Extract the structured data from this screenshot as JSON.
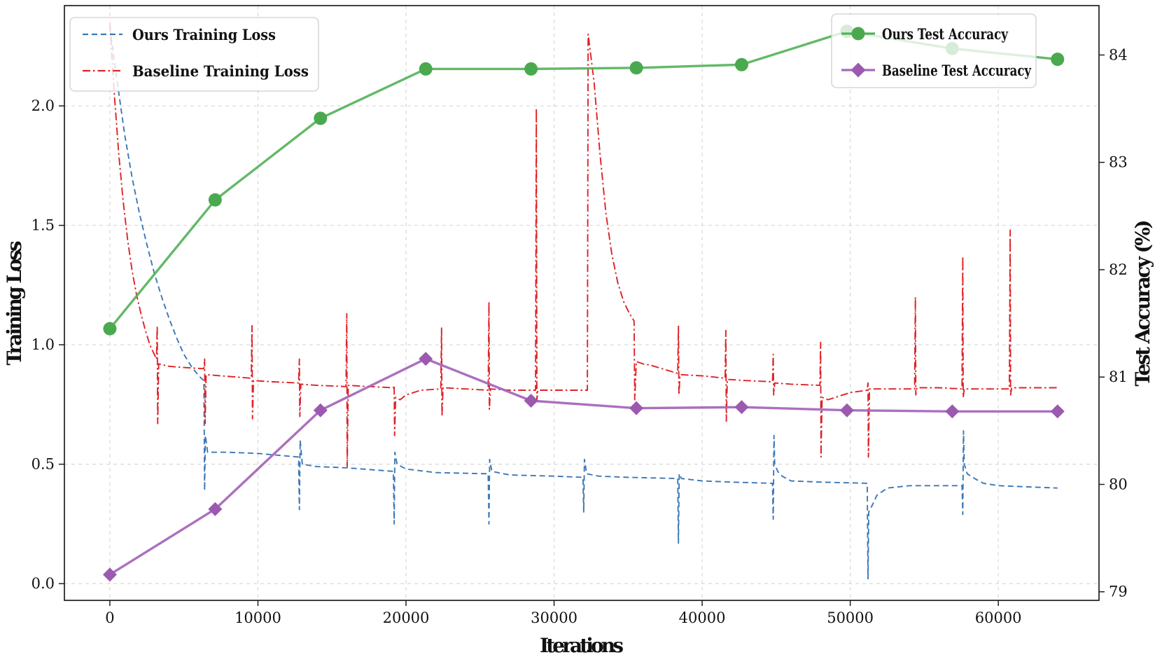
{
  "figure": {
    "background": "#ffffff",
    "axes": {
      "x": {
        "label": "Iterations",
        "ticks": [
          0,
          10000,
          20000,
          30000,
          40000,
          50000,
          60000
        ],
        "tick_labels": [
          "0",
          "10000",
          "20000",
          "30000",
          "40000",
          "50000",
          "60000"
        ],
        "lim": [
          -3070,
          66800
        ]
      },
      "y_left": {
        "label": "Training Loss",
        "ticks": [
          0.0,
          0.5,
          1.0,
          1.5,
          2.0
        ],
        "tick_labels": [
          "0.0",
          "0.5",
          "1.0",
          "1.5",
          "2.0"
        ],
        "lim": [
          -0.07,
          2.42
        ]
      },
      "y_right": {
        "label": "Test Accuracy (%)",
        "ticks": [
          79,
          80,
          81,
          82,
          83,
          84
        ],
        "tick_labels": [
          "79",
          "80",
          "81",
          "82",
          "83",
          "84"
        ],
        "lim": [
          78.92,
          84.46
        ]
      },
      "grid": "dashed, on x ticks and left y ticks"
    }
  },
  "colors": {
    "ours_loss_blue": "#3c78b5",
    "baseline_loss_red": "#e02126",
    "ours_acc_green_line": "#52b158",
    "ours_acc_green_marker": "#4aa94f",
    "baseline_acc_purple_line": "#a768ba",
    "baseline_acc_purple_marker": "#9c59b0",
    "grid": "#d8d8d8",
    "spine": "#1f1f1f",
    "legend_border": "#cfcfcf"
  },
  "legends": {
    "training_loss": {
      "position": "upper-left",
      "items": [
        {
          "label": "Ours Training Loss",
          "style": "dashed",
          "color": "#3c78b5"
        },
        {
          "label": "Baseline Training Loss",
          "style": "dash-dot",
          "color": "#e02126"
        }
      ]
    },
    "test_accuracy": {
      "position": "upper-right",
      "items": [
        {
          "label": "Ours Test Accuracy",
          "style": "solid + circle marker",
          "color": "#4aa94f"
        },
        {
          "label": "Baseline Test Accuracy",
          "style": "solid + diamond marker",
          "color": "#9c59b0"
        }
      ]
    }
  },
  "chart_data": {
    "type": "line",
    "title": "",
    "xlabel": "Iterations",
    "ylabel_left": "Training Loss",
    "ylabel_right": "Test Accuracy (%)",
    "xlim": [
      -3070,
      66800
    ],
    "ylim_left": [
      -0.07,
      2.42
    ],
    "ylim_right": [
      78.92,
      84.46
    ],
    "accuracy_iterations": [
      0,
      7111,
      14222,
      21333,
      28444,
      35556,
      42667,
      49778,
      56889,
      64000
    ],
    "series": [
      {
        "name": "Ours Test Accuracy",
        "axis": "right",
        "marker": "circle",
        "values": [
          81.45,
          82.65,
          83.41,
          83.87,
          83.87,
          83.88,
          83.91,
          84.22,
          84.06,
          83.96
        ]
      },
      {
        "name": "Baseline Test Accuracy",
        "axis": "right",
        "marker": "diamond",
        "values": [
          79.16,
          79.77,
          80.69,
          81.17,
          80.78,
          80.71,
          80.72,
          80.69,
          80.68,
          80.68
        ]
      },
      {
        "name": "Ours Training Loss",
        "axis": "left",
        "style": "dashed",
        "points": [
          [
            0,
            2.33
          ],
          [
            500,
            2.1
          ],
          [
            1000,
            1.88
          ],
          [
            1500,
            1.7
          ],
          [
            2000,
            1.55
          ],
          [
            2500,
            1.42
          ],
          [
            3000,
            1.3
          ],
          [
            3500,
            1.2
          ],
          [
            4000,
            1.11
          ],
          [
            4500,
            1.03
          ],
          [
            5000,
            0.96
          ],
          [
            5500,
            0.91
          ],
          [
            6000,
            0.87
          ],
          [
            6350,
            0.85
          ],
          [
            6400,
            0.39
          ],
          [
            6450,
            0.62
          ],
          [
            6600,
            0.55
          ],
          [
            8000,
            0.55
          ],
          [
            10000,
            0.545
          ],
          [
            12750,
            0.53
          ],
          [
            12800,
            0.31
          ],
          [
            12850,
            0.6
          ],
          [
            13000,
            0.5
          ],
          [
            14000,
            0.49
          ],
          [
            16000,
            0.485
          ],
          [
            19150,
            0.47
          ],
          [
            19200,
            0.25
          ],
          [
            19250,
            0.55
          ],
          [
            19400,
            0.5
          ],
          [
            20000,
            0.48
          ],
          [
            22000,
            0.465
          ],
          [
            25550,
            0.46
          ],
          [
            25600,
            0.25
          ],
          [
            25650,
            0.52
          ],
          [
            25800,
            0.47
          ],
          [
            27000,
            0.455
          ],
          [
            30000,
            0.45
          ],
          [
            31950,
            0.445
          ],
          [
            32000,
            0.3
          ],
          [
            32050,
            0.52
          ],
          [
            32200,
            0.46
          ],
          [
            33000,
            0.45
          ],
          [
            35000,
            0.445
          ],
          [
            38350,
            0.44
          ],
          [
            38400,
            0.17
          ],
          [
            38450,
            0.46
          ],
          [
            38600,
            0.44
          ],
          [
            40000,
            0.43
          ],
          [
            42000,
            0.425
          ],
          [
            44750,
            0.42
          ],
          [
            44800,
            0.27
          ],
          [
            44850,
            0.62
          ],
          [
            44900,
            0.5
          ],
          [
            45100,
            0.47
          ],
          [
            45400,
            0.45
          ],
          [
            46000,
            0.43
          ],
          [
            48000,
            0.425
          ],
          [
            51150,
            0.42
          ],
          [
            51200,
            0.02
          ],
          [
            51250,
            0.3
          ],
          [
            51500,
            0.33
          ],
          [
            51800,
            0.37
          ],
          [
            52500,
            0.4
          ],
          [
            54000,
            0.41
          ],
          [
            57550,
            0.41
          ],
          [
            57600,
            0.29
          ],
          [
            57650,
            0.64
          ],
          [
            57700,
            0.5
          ],
          [
            57900,
            0.46
          ],
          [
            58400,
            0.44
          ],
          [
            59000,
            0.42
          ],
          [
            60000,
            0.41
          ],
          [
            62000,
            0.405
          ],
          [
            64000,
            0.4
          ]
        ]
      },
      {
        "name": "Baseline Training Loss",
        "axis": "left",
        "style": "dash-dot",
        "points": [
          [
            0,
            2.35
          ],
          [
            300,
            2.05
          ],
          [
            600,
            1.8
          ],
          [
            900,
            1.6
          ],
          [
            1200,
            1.44
          ],
          [
            1500,
            1.31
          ],
          [
            1800,
            1.21
          ],
          [
            2100,
            1.13
          ],
          [
            2400,
            1.06
          ],
          [
            2700,
            1.0
          ],
          [
            3000,
            0.96
          ],
          [
            3150,
            0.94
          ],
          [
            3200,
            1.08
          ],
          [
            3230,
            0.67
          ],
          [
            3300,
            0.92
          ],
          [
            4000,
            0.91
          ],
          [
            5000,
            0.905
          ],
          [
            6350,
            0.9
          ],
          [
            6400,
            0.94
          ],
          [
            6430,
            0.67
          ],
          [
            6500,
            0.875
          ],
          [
            7500,
            0.87
          ],
          [
            9550,
            0.86
          ],
          [
            9600,
            1.08
          ],
          [
            9630,
            0.69
          ],
          [
            9700,
            0.85
          ],
          [
            11000,
            0.845
          ],
          [
            12750,
            0.84
          ],
          [
            12800,
            0.94
          ],
          [
            12830,
            0.7
          ],
          [
            12900,
            0.835
          ],
          [
            14000,
            0.83
          ],
          [
            15950,
            0.825
          ],
          [
            16000,
            1.13
          ],
          [
            16030,
            0.49
          ],
          [
            16100,
            0.83
          ],
          [
            17500,
            0.825
          ],
          [
            19150,
            0.82
          ],
          [
            19200,
            0.83
          ],
          [
            19230,
            0.62
          ],
          [
            19300,
            0.78
          ],
          [
            19600,
            0.77
          ],
          [
            20000,
            0.79
          ],
          [
            21000,
            0.81
          ],
          [
            22350,
            0.815
          ],
          [
            22400,
            1.07
          ],
          [
            22430,
            0.7
          ],
          [
            22500,
            0.82
          ],
          [
            24000,
            0.815
          ],
          [
            25550,
            0.81
          ],
          [
            25600,
            1.18
          ],
          [
            25630,
            0.73
          ],
          [
            25700,
            0.815
          ],
          [
            27000,
            0.81
          ],
          [
            28750,
            0.81
          ],
          [
            28800,
            1.99
          ],
          [
            28840,
            0.77
          ],
          [
            28900,
            0.81
          ],
          [
            30000,
            0.81
          ],
          [
            32250,
            0.81
          ],
          [
            32300,
            2.3
          ],
          [
            32700,
            2.1
          ],
          [
            33100,
            1.8
          ],
          [
            33500,
            1.55
          ],
          [
            33900,
            1.38
          ],
          [
            34300,
            1.26
          ],
          [
            34700,
            1.18
          ],
          [
            35100,
            1.13
          ],
          [
            35400,
            1.1
          ],
          [
            35450,
            0.77
          ],
          [
            35550,
            0.93
          ],
          [
            36000,
            0.92
          ],
          [
            36500,
            0.915
          ],
          [
            38350,
            0.88
          ],
          [
            38400,
            1.08
          ],
          [
            38430,
            0.79
          ],
          [
            38500,
            0.875
          ],
          [
            40000,
            0.87
          ],
          [
            41550,
            0.86
          ],
          [
            41600,
            1.06
          ],
          [
            41630,
            0.68
          ],
          [
            41700,
            0.855
          ],
          [
            43000,
            0.85
          ],
          [
            44750,
            0.845
          ],
          [
            44800,
            0.96
          ],
          [
            44830,
            0.79
          ],
          [
            44900,
            0.84
          ],
          [
            46000,
            0.835
          ],
          [
            47950,
            0.83
          ],
          [
            48000,
            1.01
          ],
          [
            48030,
            0.53
          ],
          [
            48100,
            0.78
          ],
          [
            48500,
            0.77
          ],
          [
            49000,
            0.78
          ],
          [
            50000,
            0.8
          ],
          [
            51150,
            0.81
          ],
          [
            51200,
            0.84
          ],
          [
            51230,
            0.53
          ],
          [
            51300,
            0.815
          ],
          [
            53000,
            0.815
          ],
          [
            54350,
            0.815
          ],
          [
            54400,
            1.2
          ],
          [
            54430,
            0.79
          ],
          [
            54500,
            0.82
          ],
          [
            56000,
            0.82
          ],
          [
            57550,
            0.815
          ],
          [
            57600,
            1.37
          ],
          [
            57630,
            0.78
          ],
          [
            57700,
            0.815
          ],
          [
            59000,
            0.815
          ],
          [
            60750,
            0.815
          ],
          [
            60800,
            1.48
          ],
          [
            60830,
            0.79
          ],
          [
            60900,
            0.82
          ],
          [
            62000,
            0.82
          ],
          [
            64000,
            0.82
          ]
        ]
      }
    ]
  }
}
